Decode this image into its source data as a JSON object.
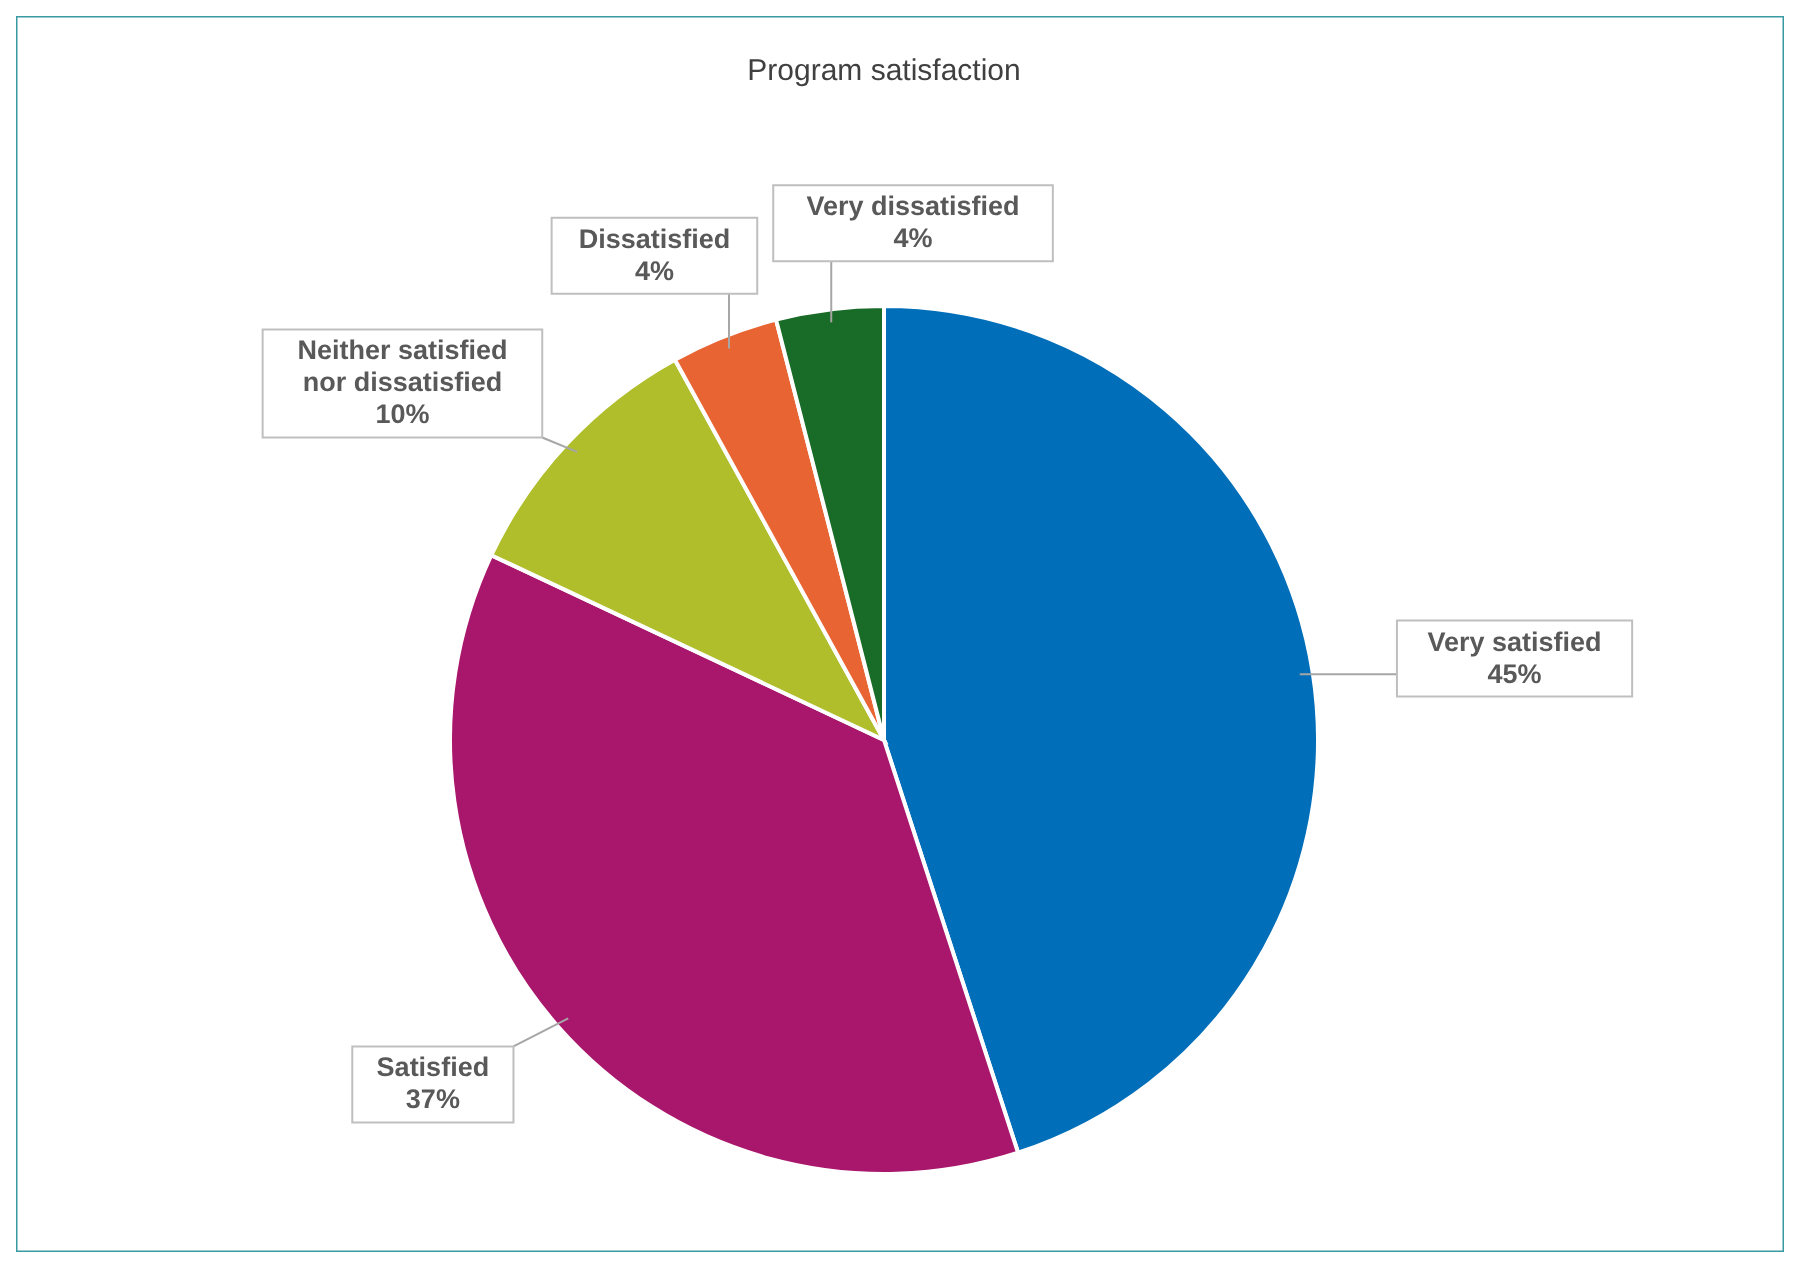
{
  "chart_data": {
    "type": "pie",
    "title": "Program satisfaction",
    "categories": [
      "Very satisfied",
      "Satisfied",
      "Neither satisfied\nnor dissatisfied",
      "Dissatisfied",
      "Very dissatisfied"
    ],
    "values": [
      45,
      37,
      10,
      4,
      4
    ],
    "colors": [
      "#006eb8",
      "#a8176b",
      "#afbe2a",
      "#e86432",
      "#196b28"
    ],
    "value_labels": [
      "45%",
      "37%",
      "10%",
      "4%",
      "4%"
    ]
  }
}
